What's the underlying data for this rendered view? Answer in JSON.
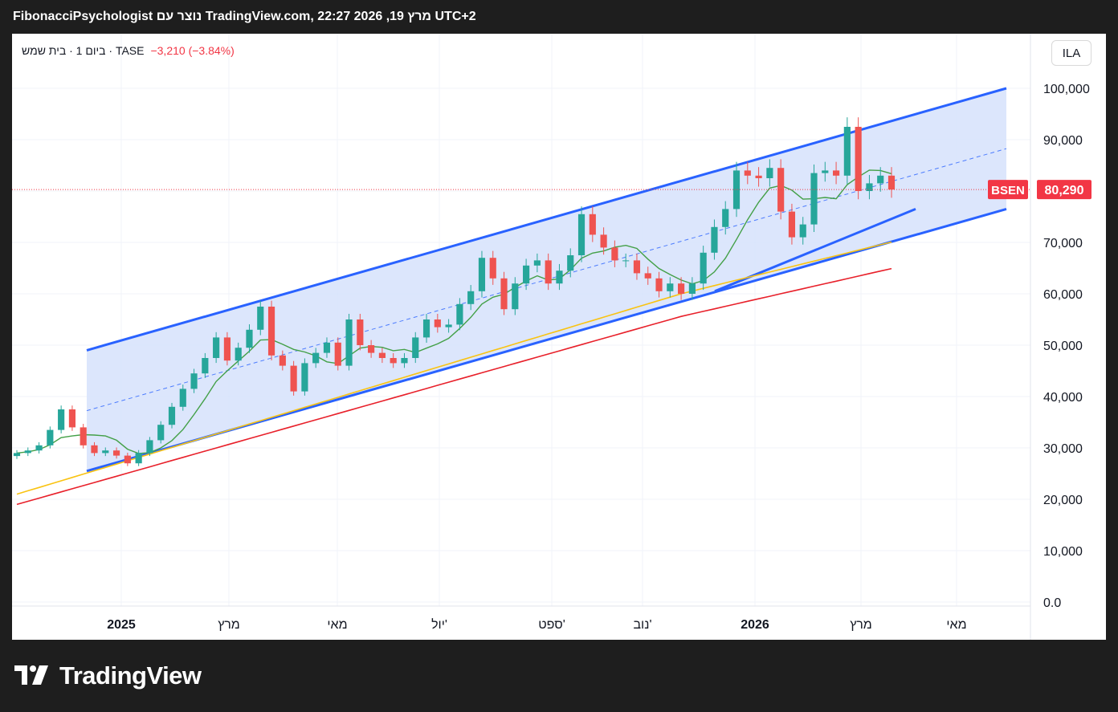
{
  "header": {
    "title": "FibonacciPsychologist נוצר עם TradingView.com, 22:27 2026 ,19 מרץ UTC+2"
  },
  "legend": {
    "symbol": "ביום 1 · בית שמש · TASE",
    "change": "−3,210 (−3.84%)"
  },
  "currency_button": "ILA",
  "footer": {
    "brand": "TradingView"
  },
  "colors": {
    "up": "#26a69a",
    "down": "#ef5350",
    "channel": "#2962ff",
    "channel_fill": "#d6e2fb",
    "ma_green": "#43a047",
    "ma_yellow": "#f9c311",
    "ma_red": "#e8202a",
    "price_label": "#f23645"
  },
  "chart_data": {
    "type": "candlestick",
    "symbol": "BSEN",
    "last_price": 80290,
    "last_price_label": "80,290",
    "ylim": [
      0,
      105000
    ],
    "y_ticks": [
      "100,000",
      "90,000",
      "80,000",
      "70,000",
      "60,000",
      "50,000",
      "40,000",
      "30,000",
      "20,000",
      "10,000",
      "0.0"
    ],
    "y_tick_values": [
      100000,
      90000,
      80000,
      70000,
      60000,
      50000,
      40000,
      30000,
      20000,
      10000,
      0
    ],
    "x_labels": [
      "2025",
      "מרץ",
      "מאי",
      "יול'",
      "ספט'",
      "נוב'",
      "2026",
      "מרץ",
      "מאי"
    ],
    "x_label_bold": [
      true,
      false,
      false,
      false,
      false,
      false,
      true,
      false,
      false
    ],
    "series_close": [
      29000,
      29500,
      30500,
      33500,
      37500,
      34000,
      30500,
      29000,
      29500,
      28500,
      27000,
      29000,
      31500,
      34500,
      38000,
      41500,
      44500,
      47500,
      51500,
      47000,
      49500,
      53000,
      57500,
      48000,
      46000,
      41000,
      46500,
      48500,
      50500,
      46000,
      55000,
      50000,
      48500,
      47500,
      46500,
      47500,
      51500,
      55000,
      53500,
      54000,
      58000,
      60500,
      67000,
      63000,
      57000,
      62000,
      65500,
      66500,
      62000,
      64500,
      67500,
      75500,
      71500,
      69000,
      66500,
      66500,
      64000,
      63000,
      60500,
      62000,
      60000,
      62000,
      68000,
      73000,
      76500,
      84000,
      83000,
      82500,
      84500,
      76000,
      71000,
      73500,
      83500,
      84000,
      83000,
      92500,
      80000,
      81500,
      83000,
      80290
    ],
    "moving_averages": [
      {
        "name": "MA green",
        "color": "#43a047"
      },
      {
        "name": "MA yellow",
        "color": "#f9c311"
      },
      {
        "name": "MA red",
        "color": "#e8202a"
      }
    ],
    "channel": {
      "upper_start": 49000,
      "upper_end": 100000,
      "lower_start": 25500,
      "lower_end": 76500
    },
    "grid": true
  }
}
